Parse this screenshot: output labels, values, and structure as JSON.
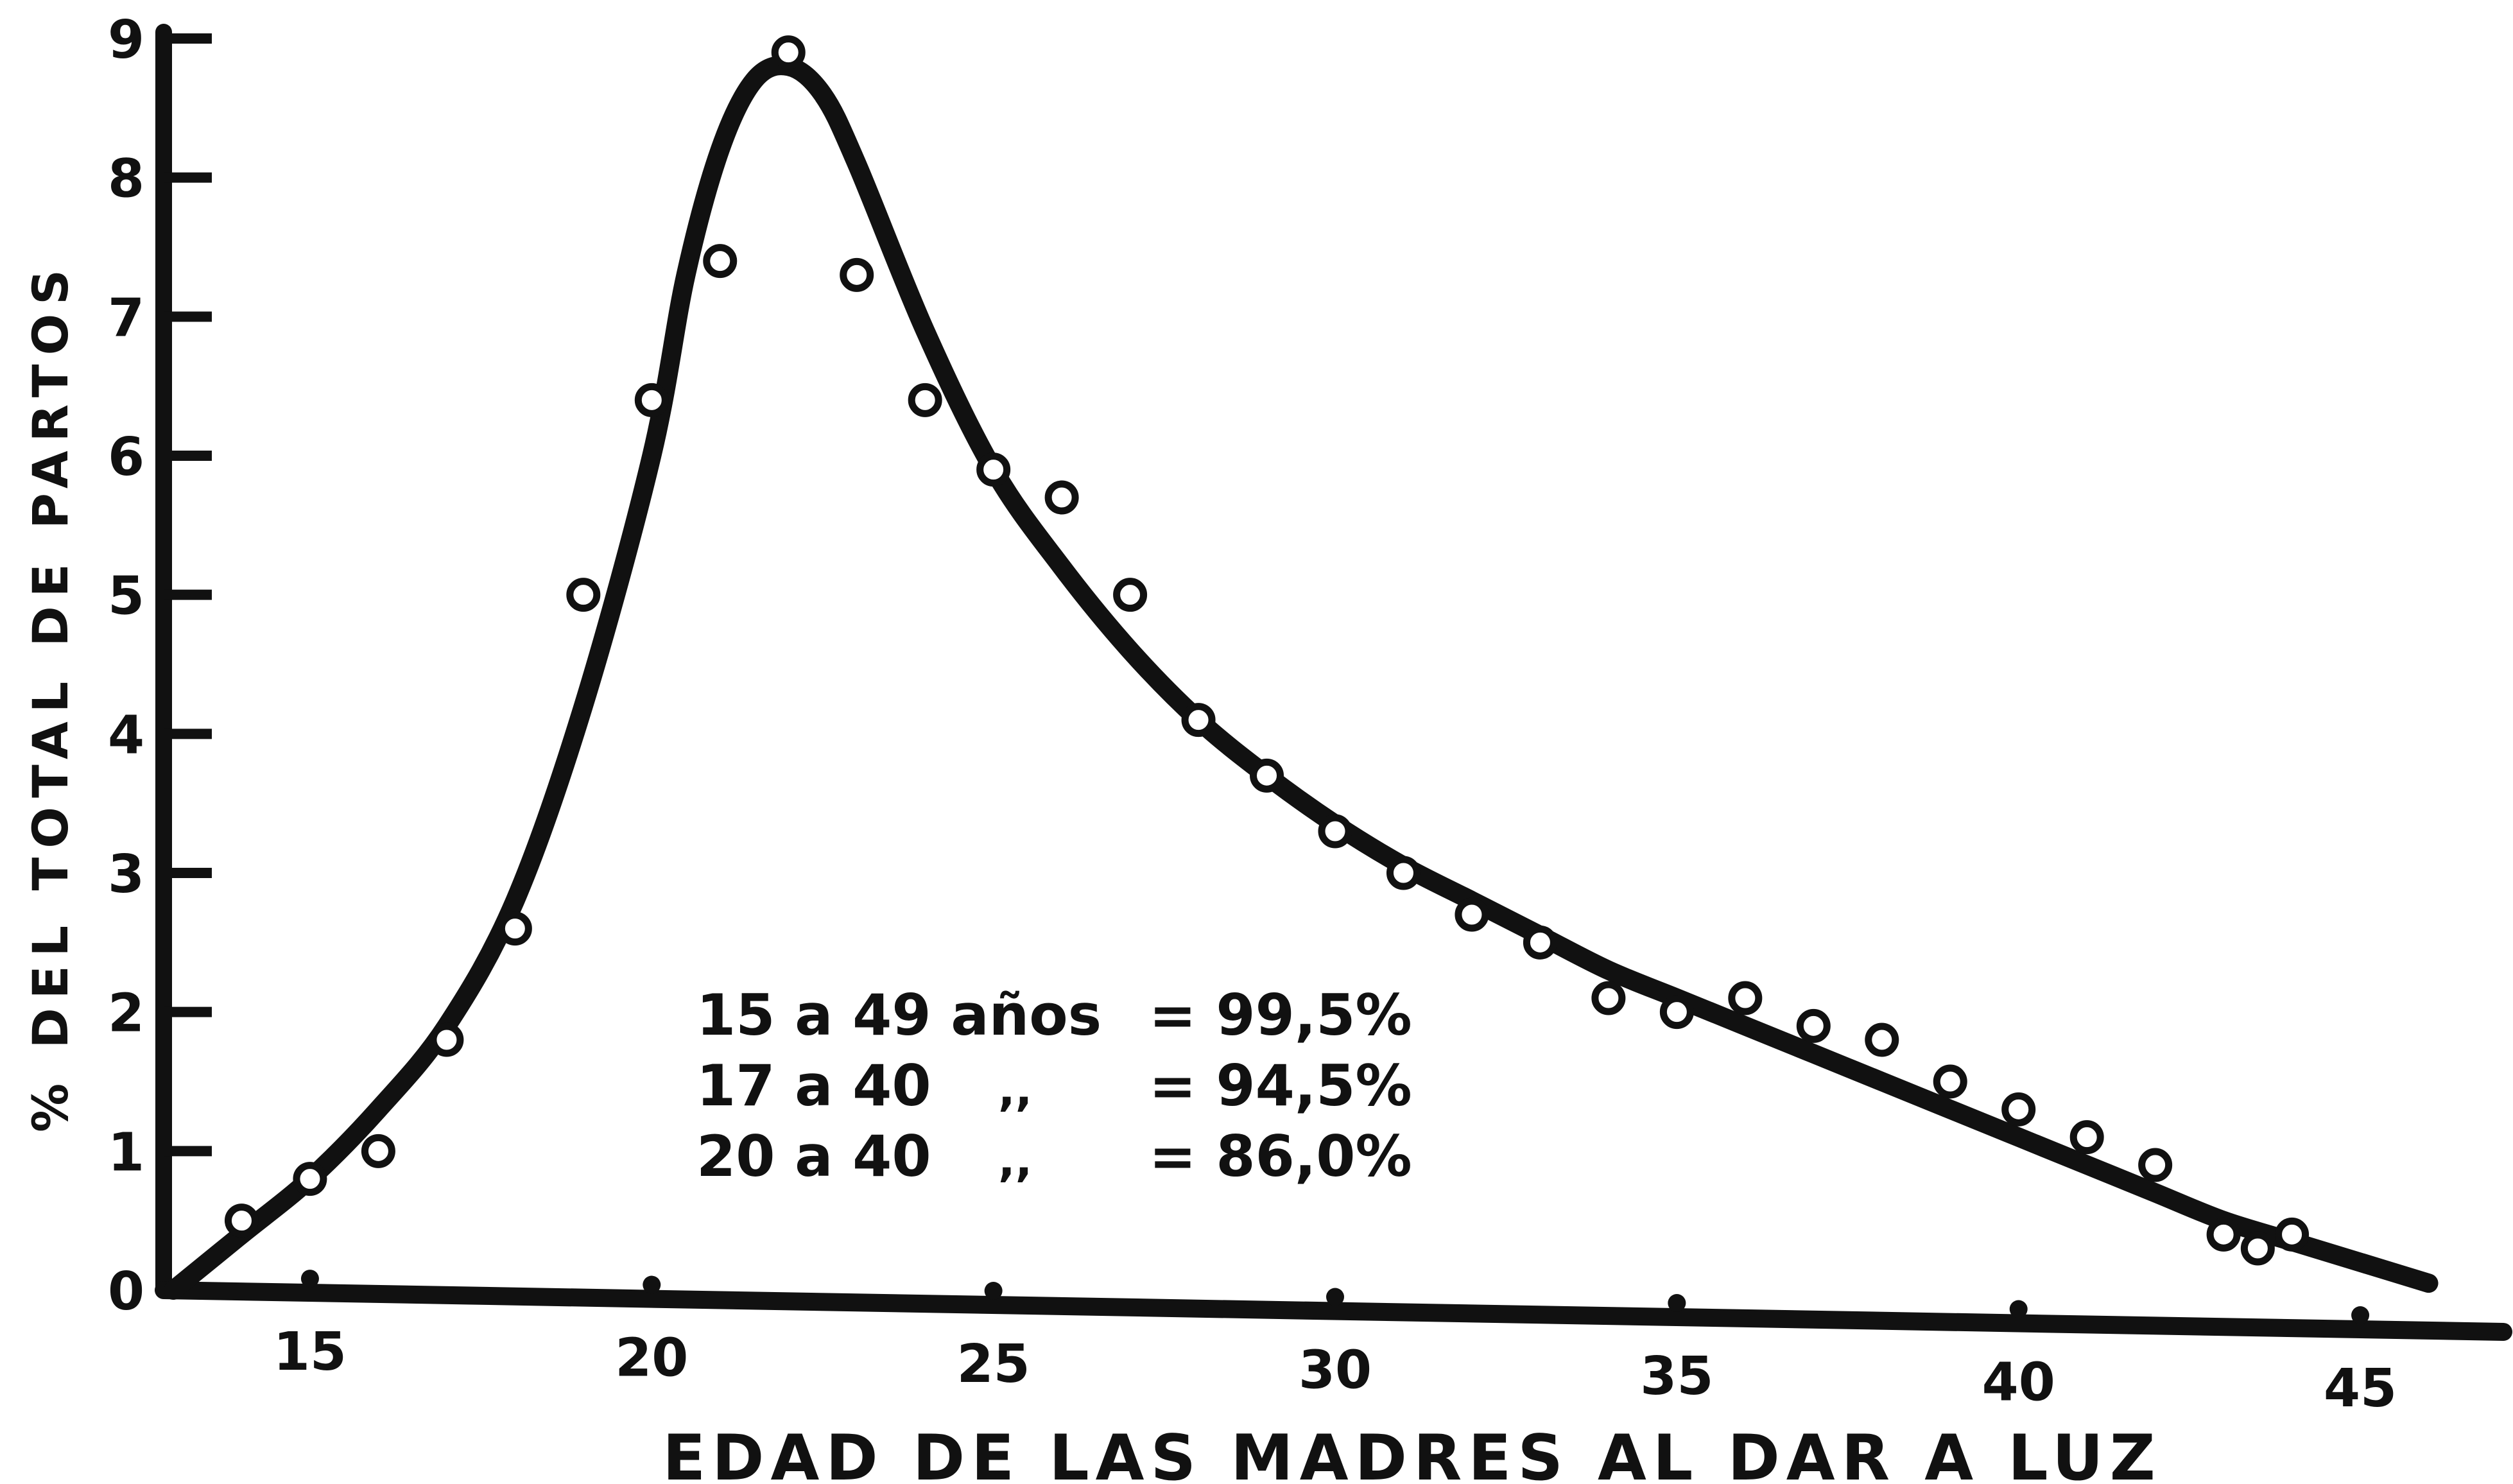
{
  "chart_data": {
    "type": "scatter",
    "title": "",
    "xlabel": "EDAD DE LAS MADRES AL DAR A LUZ",
    "ylabel": "% DEL TOTAL DE PARTOS",
    "xlim": [
      13,
      47
    ],
    "ylim": [
      0,
      9
    ],
    "x_ticks": [
      "15",
      "20",
      "25",
      "30",
      "35",
      "40",
      "45"
    ],
    "y_ticks": [
      "0",
      "1",
      "2",
      "3",
      "4",
      "5",
      "6",
      "7",
      "8",
      "9"
    ],
    "grid": false,
    "legend": "none",
    "series": [
      {
        "type": "scatter",
        "marker": "circle",
        "x": [
          14,
          15,
          16,
          17,
          18,
          19,
          20,
          21,
          22,
          23,
          24,
          25,
          26,
          27,
          28,
          29,
          30,
          31,
          32,
          33,
          34,
          35,
          36,
          37,
          38,
          39,
          40,
          41,
          42,
          43,
          43.5,
          44
        ],
        "y": [
          0.5,
          0.8,
          1.0,
          1.8,
          2.6,
          5.0,
          6.4,
          7.4,
          8.9,
          7.3,
          6.4,
          5.9,
          5.7,
          5.0,
          4.1,
          3.7,
          3.3,
          3.0,
          2.7,
          2.5,
          2.1,
          2.0,
          2.1,
          1.9,
          1.8,
          1.5,
          1.3,
          1.1,
          0.9,
          0.4,
          0.3,
          0.4
        ]
      },
      {
        "type": "line",
        "x": [
          13,
          14,
          15,
          16,
          17,
          18,
          19,
          20,
          20.5,
          21,
          21.5,
          22,
          22.5,
          23,
          24,
          25,
          26,
          27,
          28,
          29,
          30,
          31,
          32,
          33,
          34,
          35,
          36,
          37,
          38,
          39,
          40,
          41,
          42,
          43,
          44,
          45,
          46
        ],
        "y": [
          0.0,
          0.4,
          0.8,
          1.3,
          1.9,
          2.8,
          4.2,
          6.0,
          7.3,
          8.2,
          8.7,
          8.8,
          8.6,
          8.1,
          6.9,
          5.9,
          5.2,
          4.6,
          4.1,
          3.7,
          3.35,
          3.05,
          2.8,
          2.55,
          2.3,
          2.1,
          1.9,
          1.7,
          1.5,
          1.3,
          1.1,
          0.9,
          0.7,
          0.5,
          0.35,
          0.2,
          0.05
        ]
      }
    ],
    "annotations": [
      {
        "left": "15 a 49 años",
        "right": "= 99,5%"
      },
      {
        "left": "17 a 40",
        "mid": ",,",
        "right": "= 94,5%"
      },
      {
        "left": "20 a 40",
        "mid": ",,",
        "right": "= 86,0%"
      }
    ]
  }
}
